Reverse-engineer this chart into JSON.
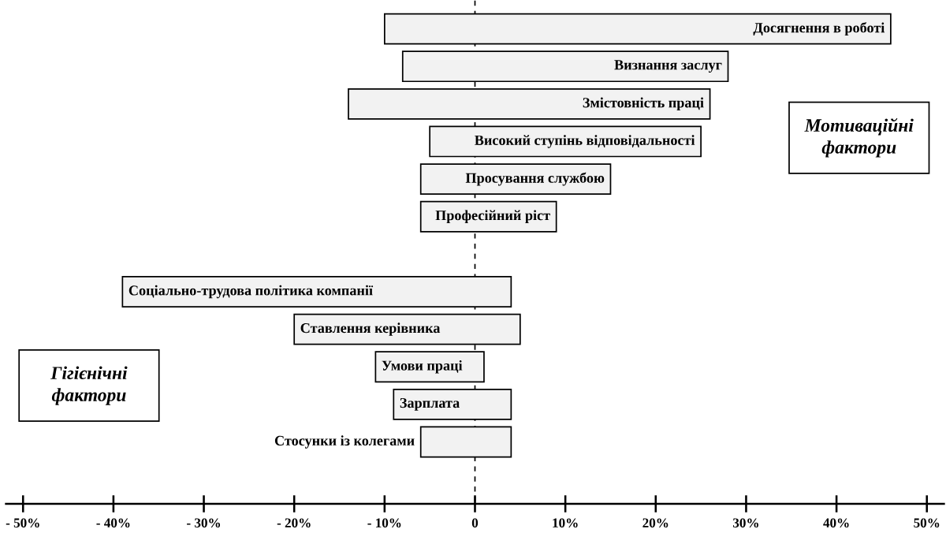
{
  "chart_data": {
    "type": "bar",
    "orientation": "horizontal",
    "color": "#f2f2f2",
    "categories": [
      "Досягнення в роботі",
      "Визнання заслуг",
      "Змістовність праці",
      "Високий ступінь відповідальності",
      "Просування службою",
      "Професійний ріст",
      null,
      "Соціально-трудова політика компанії",
      "Ставлення керівника",
      "Умови праці",
      "Зарплата",
      "Стосунки із колегами"
    ],
    "base": [
      -10,
      -8,
      -14,
      -5,
      -6,
      -6,
      null,
      -39,
      -20,
      -11,
      -9,
      -6
    ],
    "values": [
      56,
      36,
      40,
      30,
      21,
      15,
      null,
      43,
      25,
      12,
      13,
      10
    ],
    "xlim": [
      -52,
      52
    ],
    "xticks": [
      {
        "value": -50,
        "label": "- 50%"
      },
      {
        "value": -40,
        "label": "- 40%"
      },
      {
        "value": -30,
        "label": "- 30%"
      },
      {
        "value": -20,
        "label": "- 20%"
      },
      {
        "value": -10,
        "label": "- 10%"
      },
      {
        "value": 0,
        "label": "0"
      },
      {
        "value": 10,
        "label": "10%"
      },
      {
        "value": 20,
        "label": "20%"
      },
      {
        "value": 30,
        "label": "30%"
      },
      {
        "value": 40,
        "label": "40%"
      },
      {
        "value": 50,
        "label": "50%"
      }
    ],
    "ref_lines": [
      {
        "axis": "x",
        "value": 0,
        "line_style": "dashed"
      }
    ],
    "annotations": [
      "*Мотиваційні фактори*",
      "*Гігієнічні фактори*"
    ],
    "tick_labels": "x",
    "grid": false
  }
}
